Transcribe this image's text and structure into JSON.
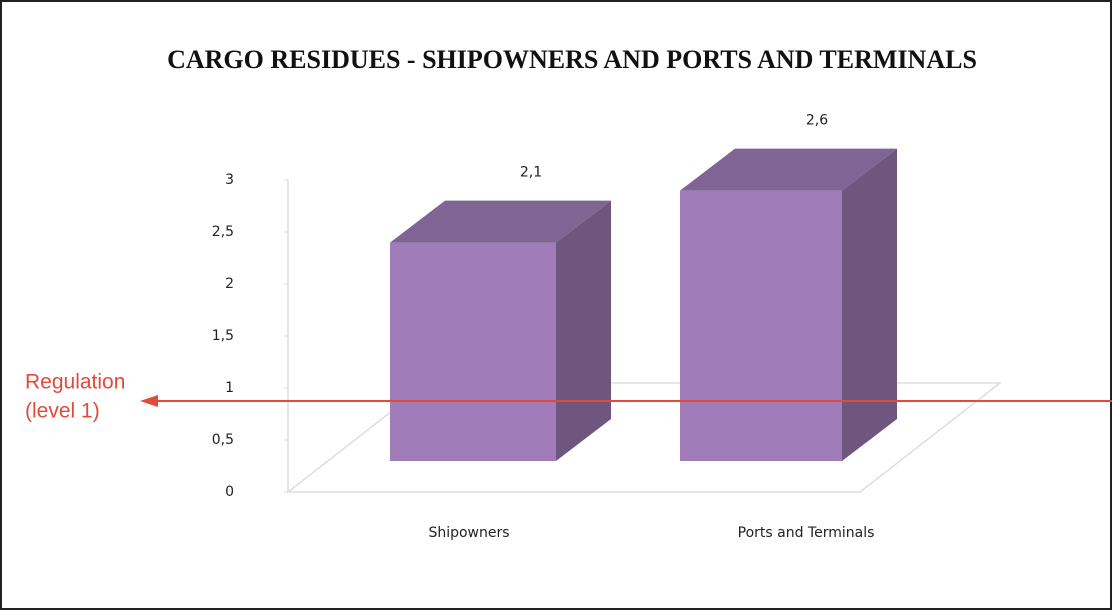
{
  "chart_data": {
    "type": "bar3d",
    "title": "CARGO RESIDUES - SHIPOWNERS AND PORTS AND TERMINALS",
    "categories": [
      "Shipowners",
      "Ports and Terminals"
    ],
    "values": [
      2.1,
      2.6
    ],
    "value_labels": [
      "2,1",
      "2,6"
    ],
    "color": "#a07db8",
    "ylim": [
      0,
      3
    ],
    "yticks": [
      0,
      {
        "value": 0.5,
        "label": "0,5"
      },
      1,
      {
        "value": 1.5,
        "label": "1,5"
      },
      2,
      {
        "value": 2.5,
        "label": "2,5"
      },
      3
    ],
    "annotation": {
      "lines": [
        "Regulation",
        "(level 1)"
      ],
      "value": 1,
      "color": "#e24b3a"
    }
  }
}
